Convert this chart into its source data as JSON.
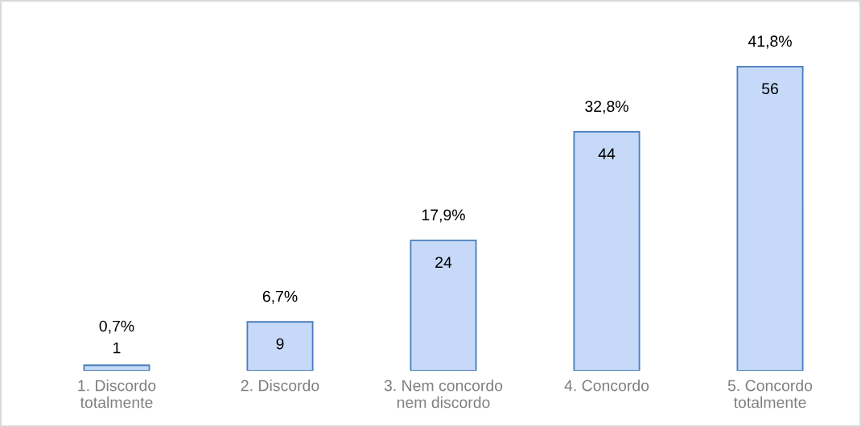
{
  "chart_data": {
    "type": "bar",
    "categories": [
      "1. Discordo\ntotalmente",
      "2. Discordo",
      "3. Nem concordo\nnem discordo",
      "4. Concordo",
      "5. Concordo\ntotalmente"
    ],
    "values": [
      1,
      9,
      24,
      44,
      56
    ],
    "color": "#c6d9f9",
    "tick_labels": "x",
    "data_labels": true,
    "annotations": [
      {
        "text": "0,7%",
        "x": "1. Discordo\ntotalmente",
        "y": 1
      },
      {
        "text": "6,7%",
        "x": "2. Discordo",
        "y": 9
      },
      {
        "text": "17,9%",
        "x": "3. Nem concordo\nnem discordo",
        "y": 24
      },
      {
        "text": "32,8%",
        "x": "4. Concordo",
        "y": 44
      },
      {
        "text": "41,8%",
        "x": "5. Concordo\ntotalmente",
        "y": 56
      }
    ]
  }
}
